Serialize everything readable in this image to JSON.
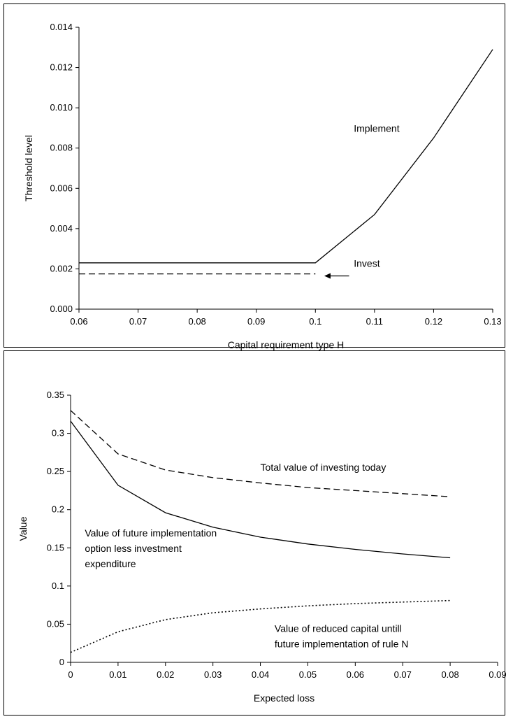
{
  "chart_data": [
    {
      "type": "line",
      "title": "",
      "xlabel": "Capital requirement type H",
      "ylabel": "Threshold level",
      "xlim": [
        0.06,
        0.13
      ],
      "ylim": [
        0.0,
        0.014
      ],
      "x_ticks": [
        "0.06",
        "0.07",
        "0.08",
        "0.09",
        "0.1",
        "0.11",
        "0.12",
        "0.13"
      ],
      "y_ticks": [
        "0.000",
        "0.002",
        "0.004",
        "0.006",
        "0.008",
        "0.010",
        "0.012",
        "0.014"
      ],
      "grid": false,
      "series": [
        {
          "name": "Implement",
          "style": "solid",
          "x": [
            0.06,
            0.07,
            0.08,
            0.09,
            0.1,
            0.11,
            0.12,
            0.13
          ],
          "y": [
            0.0023,
            0.0023,
            0.0023,
            0.0023,
            0.0023,
            0.0047,
            0.0085,
            0.0129
          ]
        },
        {
          "name": "Invest",
          "style": "dashed",
          "x": [
            0.06,
            0.1
          ],
          "y": [
            0.00175,
            0.00175
          ]
        }
      ],
      "annotations": [
        {
          "text": "Implement",
          "x": 0.1065,
          "y": 0.0088
        },
        {
          "text": "Invest",
          "x": 0.1065,
          "y": 0.0021
        }
      ],
      "arrow": {
        "from": [
          0.1057,
          0.00165
        ],
        "to": [
          0.1015,
          0.00165
        ]
      }
    },
    {
      "type": "line",
      "title": "",
      "xlabel": "Expected loss",
      "ylabel": "Value",
      "xlim": [
        0,
        0.09
      ],
      "ylim": [
        0,
        0.35
      ],
      "x_ticks": [
        "0",
        "0.01",
        "0.02",
        "0.03",
        "0.04",
        "0.05",
        "0.06",
        "0.07",
        "0.08",
        "0.09"
      ],
      "y_ticks": [
        "0",
        "0.05",
        "0.1",
        "0.15",
        "0.2",
        "0.25",
        "0.3",
        "0.35"
      ],
      "grid": false,
      "series": [
        {
          "name": "Total value of investing today",
          "style": "dashed",
          "x": [
            0,
            0.01,
            0.02,
            0.03,
            0.04,
            0.05,
            0.06,
            0.07,
            0.08
          ],
          "y": [
            0.33,
            0.273,
            0.252,
            0.242,
            0.235,
            0.229,
            0.225,
            0.221,
            0.217
          ]
        },
        {
          "name": "Value of future implementation option less investment expenditure",
          "style": "solid",
          "x": [
            0,
            0.01,
            0.02,
            0.03,
            0.04,
            0.05,
            0.06,
            0.07,
            0.08
          ],
          "y": [
            0.316,
            0.232,
            0.196,
            0.177,
            0.164,
            0.155,
            0.148,
            0.142,
            0.137
          ]
        },
        {
          "name": "Value of reduced capital untill future implementation of rule N",
          "style": "dotted",
          "x": [
            0,
            0.01,
            0.02,
            0.03,
            0.04,
            0.05,
            0.06,
            0.07,
            0.08
          ],
          "y": [
            0.013,
            0.04,
            0.056,
            0.065,
            0.07,
            0.074,
            0.077,
            0.079,
            0.081
          ]
        }
      ],
      "annotations": [
        {
          "lines": [
            "Total value of investing today"
          ],
          "x": 0.04,
          "y": 0.251
        },
        {
          "lines": [
            "Value of future implementation",
            "option  less investment",
            "expenditure"
          ],
          "x": 0.003,
          "y": 0.165
        },
        {
          "lines": [
            "Value of reduced capital untill",
            "future implementation of rule N"
          ],
          "x": 0.043,
          "y": 0.04
        }
      ]
    }
  ]
}
